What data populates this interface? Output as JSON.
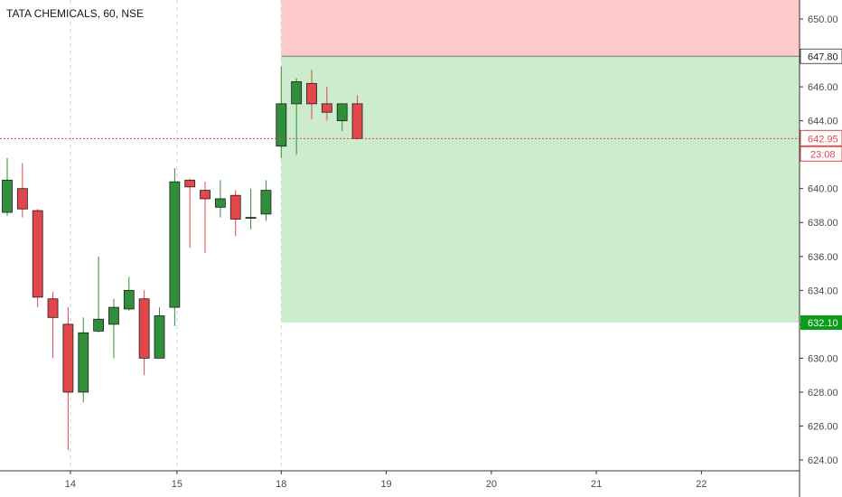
{
  "header": {
    "symbol": "TATA CHEMICALS, 60, NSE"
  },
  "colors": {
    "up": "#2f8f3a",
    "down": "#e2474b",
    "stop_zone": "#ffcaca",
    "target_zone": "#cdebcd",
    "price_line": "#e2474b",
    "grid_dash": "#d0d0d0",
    "entry_border": "#555555",
    "target_label_bg": "#099c17",
    "axis_text": "#4b4b4b"
  },
  "chart_data": {
    "type": "candlestick",
    "ylim": [
      623,
      651.5
    ],
    "y_ticks": [
      "624.00",
      "626.00",
      "628.00",
      "630.00",
      "632.00",
      "634.00",
      "636.00",
      "638.00",
      "640.00",
      "642.00",
      "644.00",
      "646.00",
      "650.00"
    ],
    "x_day_labels": [
      {
        "label": "14",
        "pos": 4.15
      },
      {
        "label": "15",
        "pos": 11.15
      },
      {
        "label": "18",
        "pos": 18
      },
      {
        "label": "19",
        "pos": 24.9
      },
      {
        "label": "20",
        "pos": 31.8
      },
      {
        "label": "21",
        "pos": 38.7
      },
      {
        "label": "22",
        "pos": 45.6
      }
    ],
    "day_separators": [
      4.15,
      11.15,
      18
    ],
    "candles": [
      {
        "o": 638.6,
        "h": 641.8,
        "l": 638.4,
        "c": 640.5
      },
      {
        "o": 640.0,
        "h": 641.5,
        "l": 638.3,
        "c": 638.8
      },
      {
        "o": 638.7,
        "h": 638.8,
        "l": 633.0,
        "c": 633.6
      },
      {
        "o": 633.5,
        "h": 633.9,
        "l": 630.0,
        "c": 632.4
      },
      {
        "o": 632.0,
        "h": 633.0,
        "l": 624.6,
        "c": 628.0
      },
      {
        "o": 628.0,
        "h": 632.4,
        "l": 627.4,
        "c": 631.5
      },
      {
        "o": 631.6,
        "h": 636.0,
        "l": 631.5,
        "c": 632.3
      },
      {
        "o": 632.0,
        "h": 633.5,
        "l": 630.0,
        "c": 633.0
      },
      {
        "o": 632.9,
        "h": 634.8,
        "l": 632.8,
        "c": 634.0
      },
      {
        "o": 633.5,
        "h": 634.0,
        "l": 629.0,
        "c": 630.0
      },
      {
        "o": 630.0,
        "h": 633.0,
        "l": 630.0,
        "c": 632.5
      },
      {
        "o": 633.0,
        "h": 641.2,
        "l": 631.9,
        "c": 640.4
      },
      {
        "o": 640.5,
        "h": 640.6,
        "l": 636.5,
        "c": 640.1
      },
      {
        "o": 639.9,
        "h": 640.4,
        "l": 636.2,
        "c": 639.4
      },
      {
        "o": 638.9,
        "h": 640.5,
        "l": 638.3,
        "c": 639.4
      },
      {
        "o": 639.6,
        "h": 639.9,
        "l": 637.2,
        "c": 638.2
      },
      {
        "o": 638.3,
        "h": 640.0,
        "l": 637.6,
        "c": 638.3
      },
      {
        "o": 638.5,
        "h": 640.5,
        "l": 638.1,
        "c": 639.9
      },
      {
        "o": 642.5,
        "h": 647.2,
        "l": 641.8,
        "c": 645.0
      },
      {
        "o": 645.0,
        "h": 646.5,
        "l": 642.0,
        "c": 646.3
      },
      {
        "o": 646.2,
        "h": 647.0,
        "l": 644.1,
        "c": 645.0
      },
      {
        "o": 645.0,
        "h": 646.0,
        "l": 644.0,
        "c": 644.5
      },
      {
        "o": 644.0,
        "h": 645.0,
        "l": 643.4,
        "c": 645.0
      },
      {
        "o": 645.0,
        "h": 645.5,
        "l": 642.9,
        "c": 642.95
      }
    ],
    "position_tool": {
      "start_pos": 18,
      "stop": 650.5,
      "entry": 647.8,
      "target": 632.1,
      "entry_label": "647.80",
      "target_label": "632.10"
    },
    "current_price": {
      "value": 642.95,
      "label": "642.95",
      "countdown": "23:08"
    }
  }
}
